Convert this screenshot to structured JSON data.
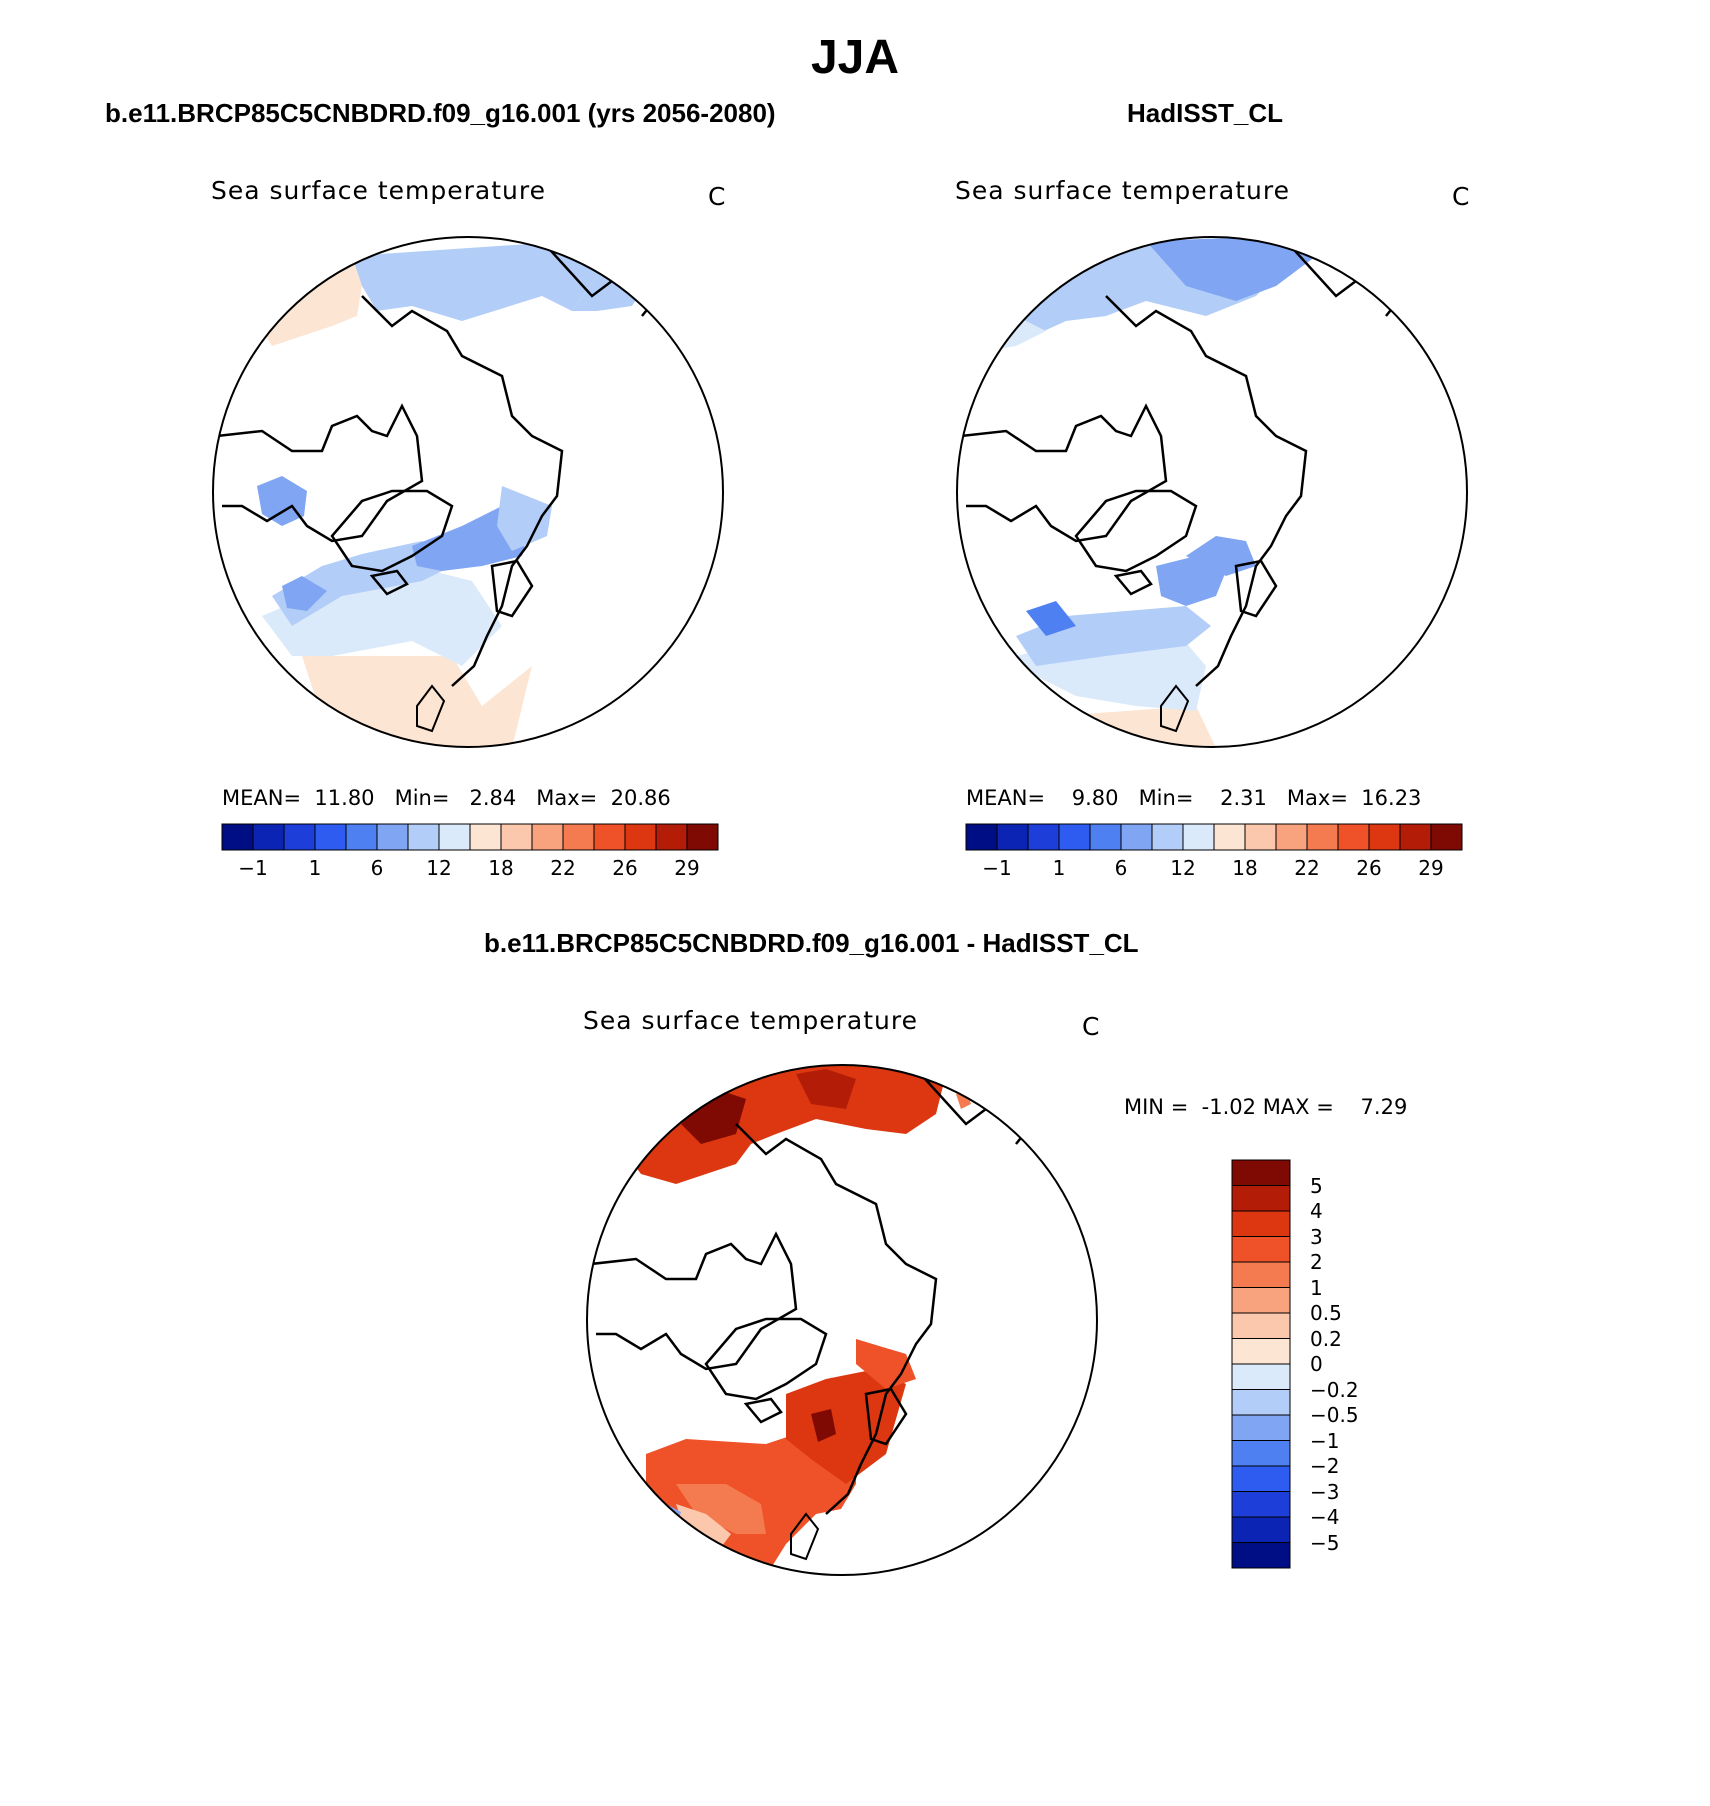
{
  "season": "JJA",
  "panels": [
    {
      "title": "b.e11.BRCP85C5CNBDRD.f09_g16.001 (yrs 2056-2080)",
      "variable": "Sea surface temperature",
      "units": "C",
      "stats": {
        "mean_label": "MEAN=",
        "mean": "11.80",
        "min_label": "Min=",
        "min": "2.84",
        "max_label": "Max=",
        "max": "20.86"
      }
    },
    {
      "title": "HadISST_CL",
      "variable": "Sea surface temperature",
      "units": "C",
      "stats": {
        "mean_label": "MEAN=",
        "mean": "9.80",
        "min_label": "Min=",
        "min": "2.31",
        "max_label": "Max=",
        "max": "16.23"
      }
    },
    {
      "title": "b.e11.BRCP85C5CNBDRD.f09_g16.001 - HadISST_CL",
      "variable": "Sea surface temperature",
      "units": "C",
      "stats": {
        "min_label": "MIN =",
        "min": "-1.02",
        "max_label": "MAX =",
        "max": "7.29"
      }
    }
  ],
  "abs_colorbar": {
    "colors": [
      "#000e86",
      "#0b24b4",
      "#1d3ed8",
      "#2e5cf0",
      "#4f80f2",
      "#7fa5f3",
      "#b2cdf7",
      "#dbeafb",
      "#fde5d3",
      "#fbc8ad",
      "#f8a27e",
      "#f47b4f",
      "#ef5228",
      "#dd3711",
      "#b31d08",
      "#7f0903"
    ],
    "tick_labels": [
      "−1",
      "1",
      "6",
      "12",
      "18",
      "22",
      "26",
      "29"
    ]
  },
  "diff_colorbar": {
    "colors": [
      "#7f0903",
      "#b31d08",
      "#dd3711",
      "#ef5228",
      "#f47b4f",
      "#f8a27e",
      "#fbc8ad",
      "#fde5d3",
      "#dbeafb",
      "#b2cdf7",
      "#7fa5f3",
      "#4f80f2",
      "#2e5cf0",
      "#1d3ed8",
      "#0b24b4",
      "#000e86"
    ],
    "tick_labels": [
      "5",
      "4",
      "3",
      "2",
      "1",
      "0.5",
      "0.2",
      "0",
      "−0.2",
      "−0.5",
      "−1",
      "−2",
      "−3",
      "−4",
      "−5"
    ]
  }
}
